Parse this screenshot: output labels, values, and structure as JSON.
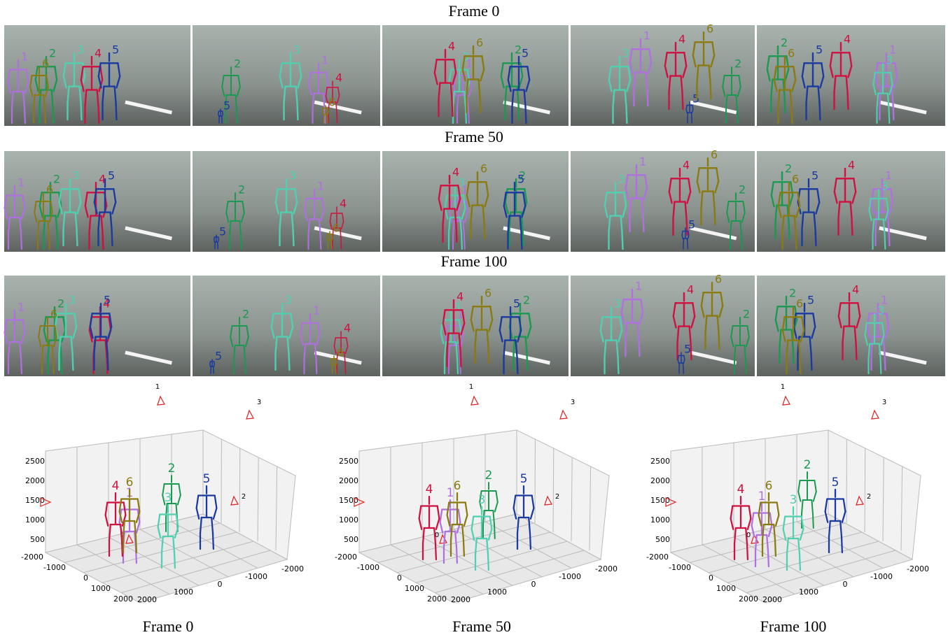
{
  "rows": [
    {
      "title": "Frame 0"
    },
    {
      "title": "Frame 50"
    },
    {
      "title": "Frame 100"
    }
  ],
  "people": [
    {
      "id": "1",
      "color": "#b070e0"
    },
    {
      "id": "2",
      "color": "#1a9a50"
    },
    {
      "id": "3",
      "color": "#50d0b0"
    },
    {
      "id": "4",
      "color": "#d01040"
    },
    {
      "id": "5",
      "color": "#1a3aa0"
    },
    {
      "id": "6",
      "color": "#8a7a10"
    }
  ],
  "cameras": [
    "0",
    "1",
    "2",
    "3"
  ],
  "axes": {
    "z_ticks": [
      "500",
      "1000",
      "1500",
      "2000",
      "2500"
    ],
    "x_ticks": [
      "-2000",
      "-1000",
      "0",
      "1000",
      "2000"
    ],
    "y_ticks": [
      "2000",
      "1000",
      "0",
      "-1000",
      "-2000"
    ]
  },
  "plots": [
    {
      "caption": "Frame 0"
    },
    {
      "caption": "Frame 50"
    },
    {
      "caption": "Frame 100"
    }
  ]
}
